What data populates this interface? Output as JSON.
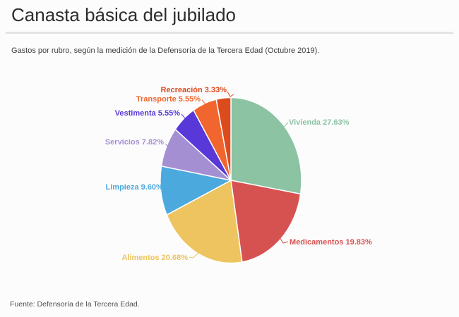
{
  "header": {
    "title": "Canasta básica del jubilado",
    "subtitle": "Gastos por rubro, según la medición de la Defensoría de la Tercera Edad (Octubre 2019)."
  },
  "footer": {
    "source": "Fuente: Defensoría de la Tercera Edad."
  },
  "chart_data": {
    "type": "pie",
    "title": "Canasta básica del jubilado",
    "unit": "%",
    "direction": "clockwise",
    "start_angle_deg": 0,
    "labels_outside": true,
    "slices": [
      {
        "label": "Vivienda",
        "value": 27.63,
        "display": "Vivienda 27.63%",
        "color": "#8bc3a3"
      },
      {
        "label": "Medicamentos",
        "value": 19.83,
        "display": "Medicamentos 19.83%",
        "color": "#d65251"
      },
      {
        "label": "Alimentos",
        "value": 20.68,
        "display": "Alimentos 20.68%",
        "color": "#edc45f"
      },
      {
        "label": "Limpieza",
        "value": 9.6,
        "display": "Limpieza 9.60%...",
        "color": "#4ba9de"
      },
      {
        "label": "Servicios",
        "value": 7.82,
        "display": "Servicios 7.82%",
        "color": "#a48fd3"
      },
      {
        "label": "Vestimenta",
        "value": 5.55,
        "display": "Vestimenta 5.55%",
        "color": "#5838d8"
      },
      {
        "label": "Transporte",
        "value": 5.55,
        "display": "Transporte 5.55%",
        "color": "#f1662e"
      },
      {
        "label": "Recreación",
        "value": 3.33,
        "display": "Recreación 3.33%",
        "color": "#dc4b1e"
      }
    ]
  }
}
